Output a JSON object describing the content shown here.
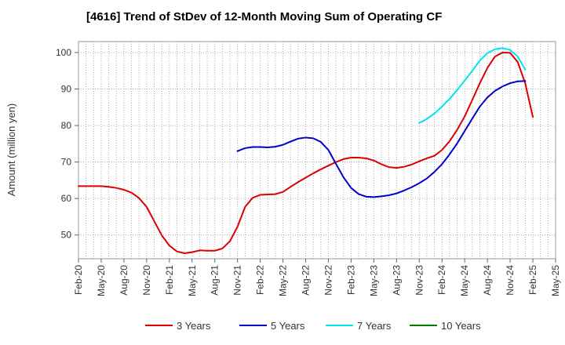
{
  "chart_data": {
    "type": "line",
    "title": "[4616]  Trend of StDev of 12-Month Moving Sum of Operating CF",
    "xlabel": "",
    "ylabel": "Amount (million yen)",
    "ylim": [
      43.5,
      103
    ],
    "yticks": [
      50,
      60,
      70,
      80,
      90,
      100
    ],
    "x_start": "Feb-20",
    "x_end": "May-25",
    "x_tick_labels": [
      "Feb-20",
      "May-20",
      "Aug-20",
      "Nov-20",
      "Feb-21",
      "May-21",
      "Aug-21",
      "Nov-21",
      "Feb-22",
      "May-22",
      "Aug-22",
      "Nov-22",
      "Feb-23",
      "May-23",
      "Aug-23",
      "Nov-23",
      "Feb-24",
      "May-24",
      "Aug-24",
      "Nov-24",
      "Feb-25",
      "May-25"
    ],
    "grid": true,
    "legend_position": "bottom",
    "series": [
      {
        "name": "3 Years",
        "color": "#dd0000",
        "start_month_index": 0,
        "values": [
          63.4,
          63.4,
          63.4,
          63.4,
          63.2,
          62.9,
          62.4,
          61.6,
          60.1,
          57.7,
          53.8,
          49.9,
          47.1,
          45.5,
          45.0,
          45.3,
          45.8,
          45.7,
          45.7,
          46.3,
          48.3,
          52.3,
          57.7,
          60.2,
          61.0,
          61.1,
          61.2,
          61.8,
          63.2,
          64.5,
          65.7,
          66.9,
          68.0,
          69.0,
          70.0,
          70.8,
          71.2,
          71.2,
          71.0,
          70.4,
          69.4,
          68.6,
          68.4,
          68.7,
          69.3,
          70.2,
          71.0,
          71.7,
          73.3,
          75.7,
          78.8,
          82.5,
          87.0,
          91.6,
          95.8,
          98.9,
          100.0,
          99.9,
          97.4,
          91.5,
          82.3
        ]
      },
      {
        "name": "5 Years",
        "color": "#0000cc",
        "start_month_index": 21,
        "values": [
          73.0,
          73.8,
          74.1,
          74.1,
          74.0,
          74.2,
          74.7,
          75.6,
          76.4,
          76.7,
          76.5,
          75.5,
          73.3,
          69.5,
          65.8,
          62.9,
          61.2,
          60.5,
          60.4,
          60.6,
          60.9,
          61.4,
          62.2,
          63.1,
          64.2,
          65.5,
          67.3,
          69.4,
          72.1,
          75.1,
          78.5,
          81.9,
          85.2,
          87.7,
          89.5,
          90.7,
          91.6,
          92.1,
          92.2
        ]
      },
      {
        "name": "7 Years",
        "color": "#00e5ee",
        "start_month_index": 45,
        "values": [
          80.7,
          81.8,
          83.3,
          85.2,
          87.3,
          89.7,
          92.3,
          95.0,
          97.8,
          99.8,
          100.9,
          101.2,
          100.7,
          98.9,
          95.3
        ]
      },
      {
        "name": "10 Years",
        "color": "#008000",
        "start_month_index": 0,
        "values": []
      }
    ]
  }
}
